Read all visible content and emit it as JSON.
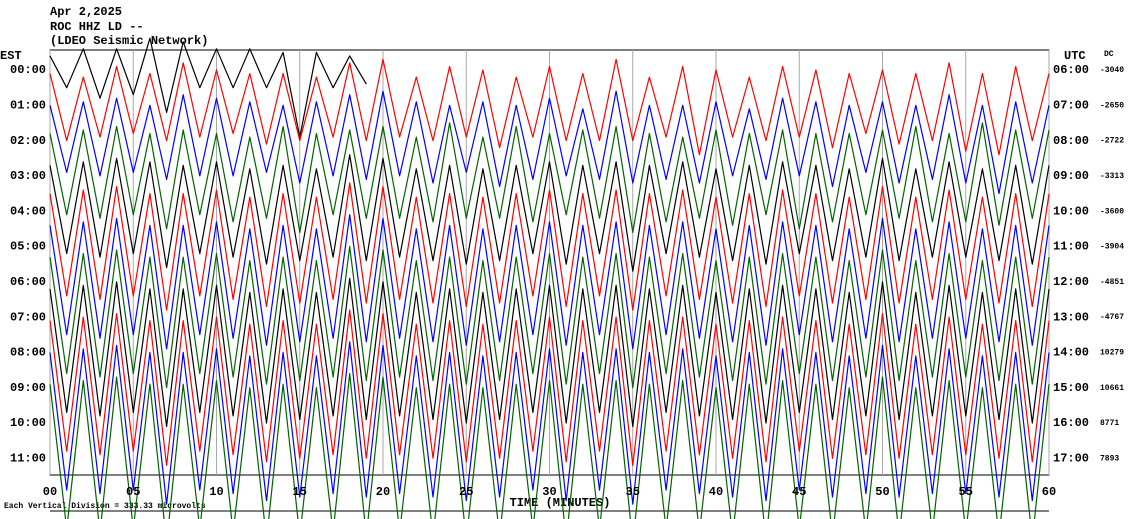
{
  "chart_data": {
    "type": "helicorder",
    "header": [
      "Apr 2,2025",
      "ROC HHZ LD --",
      "(LDEO Seismic Network)"
    ],
    "left_axis_label": "EST",
    "right_axis_label": "UTC",
    "dc_label": "DC",
    "xlabel": "TIME (MINUTES)",
    "note": "Each Vertical Division = 333.33 microvolts",
    "xlim": [
      0,
      60
    ],
    "xticks": [
      {
        "value": 0,
        "label": "00"
      },
      {
        "value": 5,
        "label": "05"
      },
      10,
      15,
      20,
      25,
      30,
      35,
      40,
      45,
      50,
      55,
      60
    ],
    "grid": true,
    "x": [
      0,
      1,
      2,
      3,
      4,
      5,
      6,
      7,
      8,
      9,
      10,
      11,
      12,
      13,
      14,
      15,
      16,
      17,
      18,
      19,
      20,
      21,
      22,
      23,
      24,
      25,
      26,
      27,
      28,
      29,
      30,
      31,
      32,
      33,
      34,
      35,
      36,
      37,
      38,
      39,
      40,
      41,
      42,
      43,
      44,
      45,
      46,
      47,
      48,
      49,
      50,
      51,
      52,
      53,
      54,
      55,
      56,
      57,
      58,
      59,
      60
    ],
    "series": [
      {
        "est": "00:00",
        "utc": "06:00",
        "dc": -3040,
        "color": "#000000",
        "values": [
          0.4,
          0.5,
          0.6,
          0.8,
          0.6,
          0.7,
          0.9,
          1.2,
          0.8,
          0.5,
          0.6,
          0.5,
          0.6,
          0.5,
          0.5,
          1.9,
          0.5,
          0.5,
          0.4,
          0.4,
          null,
          null,
          null,
          null,
          null,
          null,
          null,
          null,
          null,
          null,
          null,
          null,
          null,
          null,
          null,
          null,
          null,
          null,
          null,
          null,
          null,
          null,
          null,
          null,
          null,
          null,
          null,
          null,
          null,
          null,
          null,
          null,
          null,
          null,
          null,
          null,
          null,
          null,
          null,
          null,
          null
        ]
      },
      {
        "est": "01:00",
        "utc": "07:00",
        "dc": -2650,
        "color": "#ff0000",
        "values": [
          0.9,
          1.0,
          0.8,
          0.9,
          1.1,
          0.8,
          0.9,
          1.0,
          1.2,
          0.9,
          1.0,
          0.8,
          0.9,
          1.1,
          0.9,
          1.0,
          0.8,
          0.9,
          1.2,
          1.0,
          1.3,
          0.9,
          0.8,
          1.0,
          1.1,
          0.9,
          1.0,
          1.2,
          0.8,
          0.9,
          1.1,
          1.0,
          0.9,
          1.0,
          1.3,
          1.0,
          0.8,
          0.9,
          1.1,
          1.4,
          1.0,
          0.9,
          0.8,
          1.0,
          1.1,
          0.9,
          1.0,
          1.2,
          0.9,
          0.8,
          1.0,
          1.1,
          0.9,
          1.0,
          1.2,
          1.3,
          0.9,
          1.4,
          1.1,
          1.0,
          0.9
        ]
      },
      {
        "est": "02:00",
        "utc": "08:00",
        "dc": -2722,
        "color": "#0000ff",
        "values": [
          1.0,
          0.9,
          1.1,
          1.0,
          1.2,
          0.9,
          1.0,
          1.1,
          1.3,
          1.0,
          1.2,
          1.0,
          1.1,
          0.9,
          1.0,
          1.2,
          1.1,
          1.0,
          1.3,
          1.1,
          1.4,
          1.0,
          1.1,
          1.2,
          1.0,
          0.9,
          1.1,
          1.3,
          1.0,
          1.1,
          1.2,
          1.0,
          0.9,
          1.1,
          1.4,
          1.2,
          1.0,
          1.1,
          1.0,
          1.2,
          1.1,
          1.0,
          0.9,
          1.1,
          1.2,
          1.0,
          1.1,
          1.3,
          1.0,
          0.9,
          1.1,
          1.2,
          1.0,
          1.1,
          1.3,
          1.2,
          1.0,
          1.5,
          1.1,
          1.2,
          1.0
        ]
      },
      {
        "est": "03:00",
        "utc": "09:00",
        "dc": -3313,
        "color": "#006400",
        "values": [
          1.2,
          1.1,
          1.3,
          1.2,
          1.4,
          1.1,
          1.2,
          1.5,
          1.3,
          1.1,
          1.2,
          1.3,
          1.1,
          1.2,
          1.4,
          1.6,
          1.2,
          1.1,
          1.3,
          1.2,
          1.4,
          1.2,
          1.1,
          1.3,
          1.5,
          1.2,
          1.1,
          1.2,
          1.4,
          1.3,
          1.2,
          1.1,
          1.3,
          1.2,
          1.4,
          1.6,
          1.2,
          1.3,
          1.1,
          1.2,
          1.3,
          1.4,
          1.2,
          1.1,
          1.3,
          1.5,
          1.2,
          1.3,
          1.2,
          1.1,
          1.3,
          1.2,
          1.4,
          1.3,
          1.2,
          1.3,
          1.5,
          1.4,
          1.3,
          1.2,
          1.3
        ]
      },
      {
        "est": "04:00",
        "utc": "10:00",
        "dc": -3600,
        "color": "#000000",
        "values": [
          1.3,
          1.2,
          1.4,
          1.3,
          1.5,
          1.2,
          1.4,
          1.6,
          1.3,
          1.2,
          1.4,
          1.3,
          1.2,
          1.5,
          1.3,
          1.4,
          1.2,
          1.3,
          1.6,
          1.4,
          1.5,
          1.3,
          1.2,
          1.4,
          1.3,
          1.5,
          1.2,
          1.4,
          1.3,
          1.2,
          1.4,
          1.5,
          1.3,
          1.2,
          1.4,
          1.7,
          1.3,
          1.2,
          1.4,
          1.3,
          1.2,
          1.4,
          1.3,
          1.5,
          1.4,
          1.2,
          1.3,
          1.4,
          1.2,
          1.3,
          1.5,
          1.4,
          1.2,
          1.3,
          1.4,
          1.3,
          1.2,
          1.4,
          1.3,
          1.5,
          1.3
        ]
      },
      {
        "est": "05:00",
        "utc": "11:00",
        "dc": -3904,
        "color": "#ff0000",
        "values": [
          1.5,
          1.4,
          1.6,
          1.5,
          1.7,
          1.4,
          1.5,
          1.8,
          1.5,
          1.4,
          1.6,
          1.5,
          1.4,
          1.7,
          1.5,
          1.6,
          1.4,
          1.5,
          1.8,
          1.6,
          1.7,
          1.5,
          1.4,
          1.6,
          1.5,
          1.7,
          1.4,
          1.6,
          1.5,
          1.4,
          1.6,
          1.7,
          1.5,
          1.4,
          1.6,
          1.8,
          1.5,
          1.4,
          1.6,
          1.5,
          1.4,
          1.6,
          1.5,
          1.7,
          1.6,
          1.4,
          1.5,
          1.6,
          1.4,
          1.5,
          1.7,
          1.6,
          1.4,
          1.5,
          1.6,
          1.5,
          1.4,
          1.6,
          1.5,
          1.7,
          1.5
        ]
      },
      {
        "est": "06:00",
        "utc": "12:00",
        "dc": -4851,
        "color": "#0000ff",
        "values": [
          1.6,
          1.5,
          1.7,
          1.6,
          1.8,
          1.5,
          1.6,
          1.9,
          1.6,
          1.5,
          1.7,
          1.6,
          1.5,
          1.8,
          1.6,
          1.7,
          1.5,
          1.6,
          1.9,
          1.7,
          1.8,
          1.6,
          1.5,
          1.7,
          1.6,
          1.8,
          1.5,
          1.7,
          1.6,
          1.5,
          1.7,
          1.8,
          1.6,
          1.5,
          1.7,
          1.9,
          1.6,
          1.5,
          1.7,
          1.6,
          1.5,
          1.7,
          1.6,
          1.8,
          1.7,
          1.5,
          1.6,
          1.7,
          1.5,
          1.6,
          1.8,
          1.7,
          1.5,
          1.6,
          1.7,
          1.6,
          1.5,
          1.7,
          1.6,
          1.8,
          1.6
        ]
      },
      {
        "est": "07:00",
        "utc": "13:00",
        "dc": -4767,
        "color": "#006400",
        "values": [
          1.7,
          1.6,
          1.8,
          1.7,
          1.9,
          1.6,
          1.7,
          2.0,
          1.7,
          1.6,
          1.8,
          1.7,
          1.6,
          1.9,
          1.7,
          1.8,
          1.6,
          1.7,
          2.0,
          1.8,
          1.9,
          1.7,
          1.6,
          1.8,
          1.7,
          1.9,
          1.6,
          1.8,
          1.7,
          1.6,
          1.8,
          1.9,
          1.7,
          1.6,
          1.8,
          2.0,
          1.7,
          1.6,
          1.8,
          1.7,
          1.6,
          1.8,
          1.7,
          1.9,
          1.8,
          1.6,
          1.7,
          1.8,
          1.6,
          1.7,
          1.9,
          1.8,
          1.6,
          1.7,
          1.8,
          1.7,
          1.6,
          1.8,
          1.7,
          1.9,
          1.7
        ]
      },
      {
        "est": "08:00",
        "utc": "14:00",
        "dc": 10279,
        "color": "#000000",
        "values": [
          1.8,
          1.7,
          1.9,
          1.8,
          2.0,
          1.7,
          1.8,
          2.1,
          1.8,
          1.7,
          1.9,
          1.8,
          1.7,
          2.0,
          1.8,
          1.9,
          1.7,
          1.8,
          2.1,
          1.9,
          2.0,
          1.8,
          1.7,
          1.9,
          1.8,
          2.0,
          1.7,
          1.9,
          1.8,
          1.7,
          1.9,
          2.0,
          1.8,
          1.7,
          1.9,
          2.1,
          1.8,
          1.7,
          1.9,
          1.8,
          1.7,
          1.9,
          1.8,
          2.0,
          1.9,
          1.7,
          1.8,
          1.9,
          1.7,
          1.8,
          2.0,
          1.9,
          1.7,
          1.8,
          1.9,
          1.8,
          1.7,
          1.9,
          1.8,
          2.0,
          1.8
        ]
      },
      {
        "est": "09:00",
        "utc": "15:00",
        "dc": 10661,
        "color": "#ff0000",
        "values": [
          1.9,
          1.8,
          2.0,
          1.9,
          2.1,
          1.8,
          1.9,
          2.2,
          1.9,
          1.8,
          2.0,
          1.9,
          1.8,
          2.1,
          1.9,
          2.0,
          1.8,
          1.9,
          2.2,
          2.0,
          2.1,
          1.9,
          1.8,
          2.0,
          1.9,
          2.1,
          1.8,
          2.0,
          1.9,
          1.8,
          2.0,
          2.1,
          1.9,
          1.8,
          2.0,
          2.2,
          1.9,
          1.8,
          2.0,
          1.9,
          1.8,
          2.0,
          1.9,
          2.1,
          2.0,
          1.8,
          1.9,
          2.0,
          1.8,
          1.9,
          2.1,
          2.0,
          1.8,
          1.9,
          2.0,
          1.9,
          1.8,
          2.0,
          1.9,
          2.1,
          1.9
        ]
      },
      {
        "est": "10:00",
        "utc": "16:00",
        "dc": 8771,
        "color": "#0000ff",
        "values": [
          2.0,
          1.9,
          2.1,
          2.0,
          2.2,
          1.9,
          2.0,
          2.3,
          2.0,
          1.9,
          2.1,
          2.0,
          1.9,
          2.2,
          2.0,
          2.1,
          1.9,
          2.0,
          2.3,
          2.1,
          2.2,
          2.0,
          1.9,
          2.1,
          2.0,
          2.2,
          1.9,
          2.1,
          2.0,
          1.9,
          2.1,
          2.2,
          2.0,
          1.9,
          2.1,
          2.3,
          2.0,
          1.9,
          2.1,
          2.0,
          1.9,
          2.1,
          2.0,
          2.2,
          2.1,
          1.9,
          2.0,
          2.1,
          1.9,
          2.0,
          2.2,
          2.1,
          1.9,
          2.0,
          2.1,
          2.0,
          1.9,
          2.1,
          2.0,
          2.2,
          2.0
        ]
      },
      {
        "est": "11:00",
        "utc": "17:00",
        "dc": 7893,
        "color": "#006400",
        "values": [
          2.1,
          2.0,
          2.2,
          2.1,
          2.3,
          2.0,
          2.1,
          2.4,
          2.1,
          2.0,
          2.2,
          2.1,
          2.0,
          2.3,
          2.1,
          2.2,
          2.0,
          2.1,
          2.4,
          2.2,
          2.3,
          2.1,
          2.0,
          2.2,
          2.1,
          2.3,
          2.0,
          2.2,
          2.1,
          2.0,
          2.2,
          2.3,
          2.1,
          2.0,
          2.2,
          2.4,
          2.1,
          2.0,
          2.2,
          2.1,
          2.0,
          2.2,
          2.1,
          2.3,
          2.2,
          2.0,
          2.1,
          2.2,
          2.0,
          2.1,
          2.3,
          2.2,
          2.0,
          2.1,
          2.2,
          2.1,
          2.0,
          2.2,
          2.1,
          2.3,
          2.1
        ]
      }
    ]
  }
}
